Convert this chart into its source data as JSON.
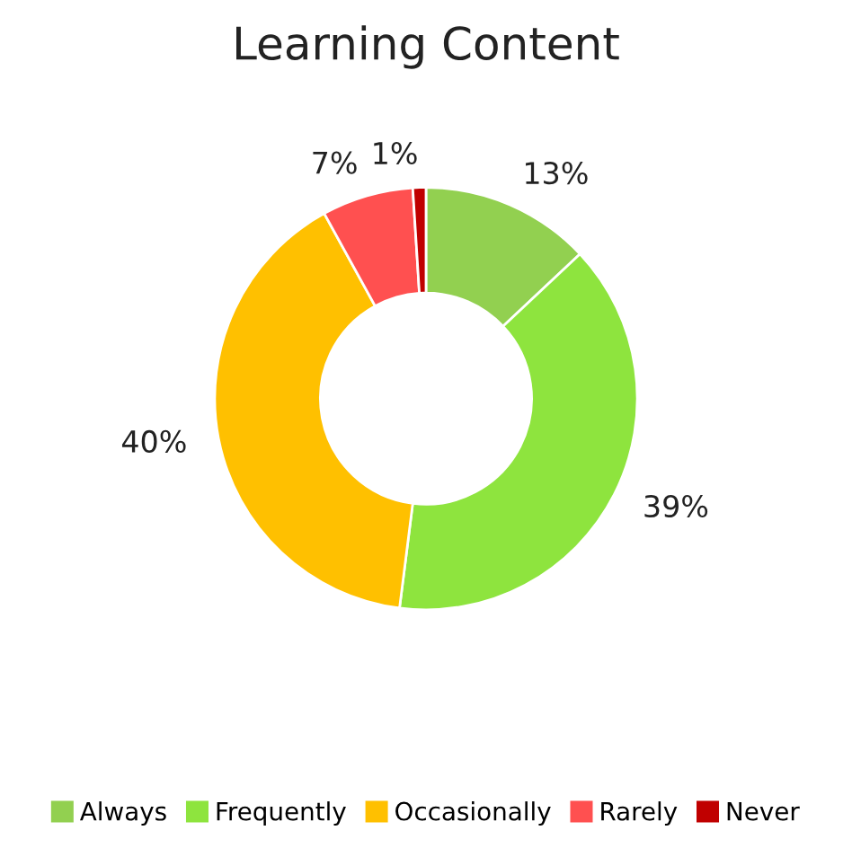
{
  "chart_data": {
    "type": "donut",
    "title": "Learning Content",
    "categories": [
      "Always",
      "Frequently",
      "Occasionally",
      "Rarely",
      "Never"
    ],
    "values": [
      13,
      39,
      40,
      7,
      1
    ],
    "colors": [
      "#92d050",
      "#8ee43e",
      "#ffc000",
      "#ff5050",
      "#c00000"
    ],
    "value_labels": [
      "13%",
      "39%",
      "40%",
      "7%",
      "1%"
    ],
    "legend": "bottom"
  }
}
